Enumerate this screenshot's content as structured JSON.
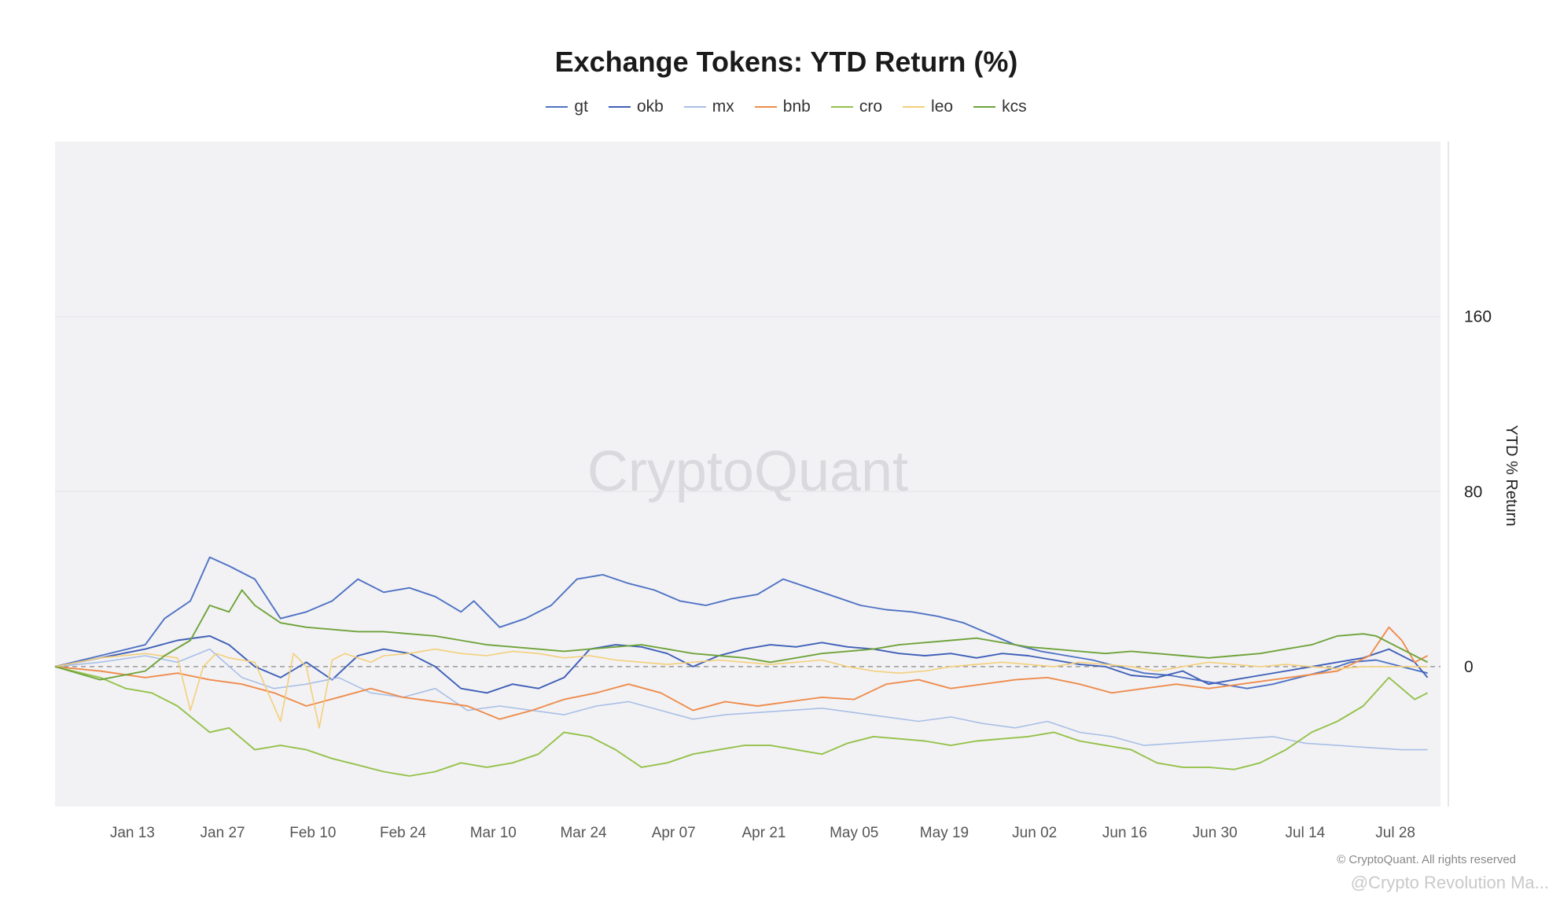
{
  "chart_data": {
    "type": "line",
    "title": "Exchange Tokens: YTD Return (%)",
    "ylabel": "YTD % Return",
    "xlabel": "",
    "watermark": "CryptoQuant",
    "credit": "© CryptoQuant. All rights reserved",
    "footer": "@Crypto Revolution Ma...",
    "x_tick_labels": [
      "Jan 13",
      "Jan 27",
      "Feb 10",
      "Feb 24",
      "Mar 10",
      "Mar 24",
      "Apr 07",
      "Apr 21",
      "May 05",
      "May 19",
      "Jun 02",
      "Jun 16",
      "Jun 30",
      "Jul 14",
      "Jul 28"
    ],
    "x_tick_days": [
      13,
      27,
      41,
      55,
      69,
      83,
      97,
      111,
      125,
      139,
      153,
      167,
      181,
      195,
      209
    ],
    "x_range": [
      1,
      216
    ],
    "y_ticks": [
      0,
      80,
      160
    ],
    "ylim": [
      -64,
      240
    ],
    "grid": true,
    "legend_position": "top-center",
    "x_unit_note": "",
    "series": [
      {
        "name": "gt",
        "color": "#4f72c4",
        "x": [
          1,
          8,
          15,
          18,
          22,
          25,
          28,
          32,
          36,
          40,
          44,
          48,
          52,
          56,
          60,
          64,
          66,
          70,
          74,
          78,
          82,
          86,
          90,
          94,
          98,
          102,
          106,
          110,
          114,
          118,
          122,
          126,
          130,
          134,
          138,
          142,
          146,
          150,
          154,
          158,
          162,
          166,
          170,
          174,
          178,
          182,
          186,
          190,
          194,
          198,
          202,
          206,
          210,
          214
        ],
        "values": [
          0,
          5,
          10,
          22,
          30,
          50,
          46,
          40,
          22,
          25,
          30,
          40,
          34,
          36,
          32,
          25,
          30,
          18,
          22,
          28,
          40,
          42,
          38,
          35,
          30,
          28,
          31,
          33,
          40,
          36,
          32,
          28,
          26,
          25,
          23,
          20,
          15,
          10,
          7,
          5,
          3,
          0,
          -3,
          -4,
          -6,
          -8,
          -10,
          -8,
          -5,
          -2,
          2,
          3,
          0,
          -3
        ]
      },
      {
        "name": "okb",
        "color": "#3f5fb8",
        "x": [
          1,
          8,
          15,
          20,
          25,
          28,
          32,
          36,
          40,
          44,
          48,
          52,
          56,
          60,
          64,
          68,
          72,
          76,
          80,
          84,
          88,
          92,
          96,
          100,
          104,
          108,
          112,
          116,
          120,
          124,
          128,
          132,
          136,
          140,
          144,
          148,
          152,
          156,
          160,
          164,
          168,
          172,
          176,
          180,
          184,
          188,
          192,
          196,
          200,
          204,
          208,
          212,
          214
        ],
        "values": [
          0,
          4,
          8,
          12,
          14,
          10,
          0,
          -5,
          2,
          -6,
          5,
          8,
          6,
          0,
          -10,
          -12,
          -8,
          -10,
          -5,
          8,
          10,
          9,
          6,
          0,
          5,
          8,
          10,
          9,
          11,
          9,
          8,
          6,
          5,
          6,
          4,
          6,
          5,
          3,
          1,
          0,
          -4,
          -5,
          -2,
          -8,
          -6,
          -4,
          -2,
          0,
          2,
          4,
          8,
          2,
          -5
        ]
      },
      {
        "name": "mx",
        "color": "#a9bfe6",
        "x": [
          1,
          8,
          15,
          20,
          25,
          30,
          35,
          40,
          45,
          50,
          55,
          60,
          65,
          70,
          75,
          80,
          85,
          90,
          95,
          100,
          105,
          110,
          115,
          120,
          125,
          130,
          135,
          140,
          145,
          150,
          155,
          160,
          165,
          170,
          175,
          180,
          185,
          190,
          195,
          200,
          205,
          210,
          214
        ],
        "values": [
          0,
          2,
          5,
          2,
          8,
          -5,
          -10,
          -8,
          -5,
          -12,
          -14,
          -10,
          -20,
          -18,
          -20,
          -22,
          -18,
          -16,
          -20,
          -24,
          -22,
          -21,
          -20,
          -19,
          -21,
          -23,
          -25,
          -23,
          -26,
          -28,
          -25,
          -30,
          -32,
          -36,
          -35,
          -34,
          -33,
          -32,
          -35,
          -36,
          -37,
          -38,
          -38
        ]
      },
      {
        "name": "bnb",
        "color": "#ee8c4d",
        "x": [
          1,
          8,
          15,
          20,
          25,
          30,
          35,
          40,
          45,
          50,
          55,
          60,
          65,
          70,
          75,
          80,
          85,
          90,
          95,
          100,
          105,
          110,
          115,
          120,
          125,
          130,
          135,
          140,
          145,
          150,
          155,
          160,
          165,
          170,
          175,
          180,
          185,
          190,
          195,
          200,
          205,
          208,
          210,
          212,
          214
        ],
        "values": [
          0,
          -2,
          -5,
          -3,
          -6,
          -8,
          -12,
          -18,
          -14,
          -10,
          -14,
          -16,
          -18,
          -24,
          -20,
          -15,
          -12,
          -8,
          -12,
          -20,
          -16,
          -18,
          -16,
          -14,
          -15,
          -8,
          -6,
          -10,
          -8,
          -6,
          -5,
          -8,
          -12,
          -10,
          -8,
          -10,
          -8,
          -6,
          -4,
          -2,
          5,
          18,
          12,
          2,
          5
        ]
      },
      {
        "name": "cro",
        "color": "#94c14a",
        "x": [
          1,
          8,
          12,
          16,
          20,
          25,
          28,
          32,
          36,
          40,
          44,
          48,
          52,
          56,
          60,
          64,
          68,
          72,
          76,
          80,
          84,
          88,
          92,
          96,
          100,
          104,
          108,
          112,
          116,
          120,
          124,
          128,
          132,
          136,
          140,
          144,
          148,
          152,
          156,
          160,
          164,
          168,
          172,
          176,
          180,
          184,
          188,
          192,
          196,
          200,
          204,
          208,
          212,
          214
        ],
        "values": [
          0,
          -5,
          -10,
          -12,
          -18,
          -30,
          -28,
          -38,
          -36,
          -38,
          -42,
          -45,
          -48,
          -50,
          -48,
          -44,
          -46,
          -44,
          -40,
          -30,
          -32,
          -38,
          -46,
          -44,
          -40,
          -38,
          -36,
          -36,
          -38,
          -40,
          -35,
          -32,
          -33,
          -34,
          -36,
          -34,
          -33,
          -32,
          -30,
          -34,
          -36,
          -38,
          -44,
          -46,
          -46,
          -47,
          -44,
          -38,
          -30,
          -25,
          -18,
          -5,
          -15,
          -12
        ]
      },
      {
        "name": "leo",
        "color": "#f3cf7a",
        "x": [
          1,
          8,
          15,
          20,
          22,
          24,
          26,
          28,
          32,
          36,
          38,
          40,
          42,
          44,
          46,
          48,
          50,
          52,
          56,
          60,
          64,
          68,
          72,
          76,
          80,
          84,
          88,
          92,
          96,
          100,
          104,
          108,
          112,
          116,
          120,
          124,
          128,
          132,
          136,
          140,
          144,
          148,
          152,
          156,
          160,
          164,
          168,
          172,
          176,
          180,
          184,
          188,
          192,
          196,
          200,
          204,
          208,
          212,
          214
        ],
        "values": [
          0,
          4,
          6,
          4,
          -20,
          0,
          6,
          4,
          2,
          -25,
          6,
          0,
          -28,
          3,
          6,
          4,
          2,
          5,
          6,
          8,
          6,
          5,
          7,
          6,
          4,
          5,
          3,
          2,
          1,
          2,
          3,
          2,
          1,
          2,
          3,
          0,
          -2,
          -3,
          -2,
          0,
          1,
          2,
          1,
          0,
          2,
          1,
          0,
          -2,
          0,
          2,
          1,
          0,
          1,
          0,
          -1,
          0,
          0,
          0,
          0
        ]
      },
      {
        "name": "kcs",
        "color": "#6fa33a",
        "x": [
          1,
          8,
          15,
          18,
          22,
          25,
          28,
          30,
          32,
          36,
          40,
          44,
          48,
          52,
          56,
          60,
          64,
          68,
          72,
          76,
          80,
          84,
          88,
          92,
          96,
          100,
          104,
          108,
          112,
          116,
          120,
          124,
          128,
          132,
          136,
          140,
          144,
          148,
          152,
          156,
          160,
          164,
          168,
          172,
          176,
          180,
          184,
          188,
          192,
          196,
          200,
          204,
          206,
          210,
          214
        ],
        "values": [
          0,
          -6,
          -2,
          5,
          12,
          28,
          25,
          35,
          28,
          20,
          18,
          17,
          16,
          16,
          15,
          14,
          12,
          10,
          9,
          8,
          7,
          8,
          9,
          10,
          8,
          6,
          5,
          4,
          2,
          4,
          6,
          7,
          8,
          10,
          11,
          12,
          13,
          11,
          9,
          8,
          7,
          6,
          7,
          6,
          5,
          4,
          5,
          6,
          8,
          10,
          14,
          15,
          14,
          8,
          2
        ]
      }
    ]
  }
}
